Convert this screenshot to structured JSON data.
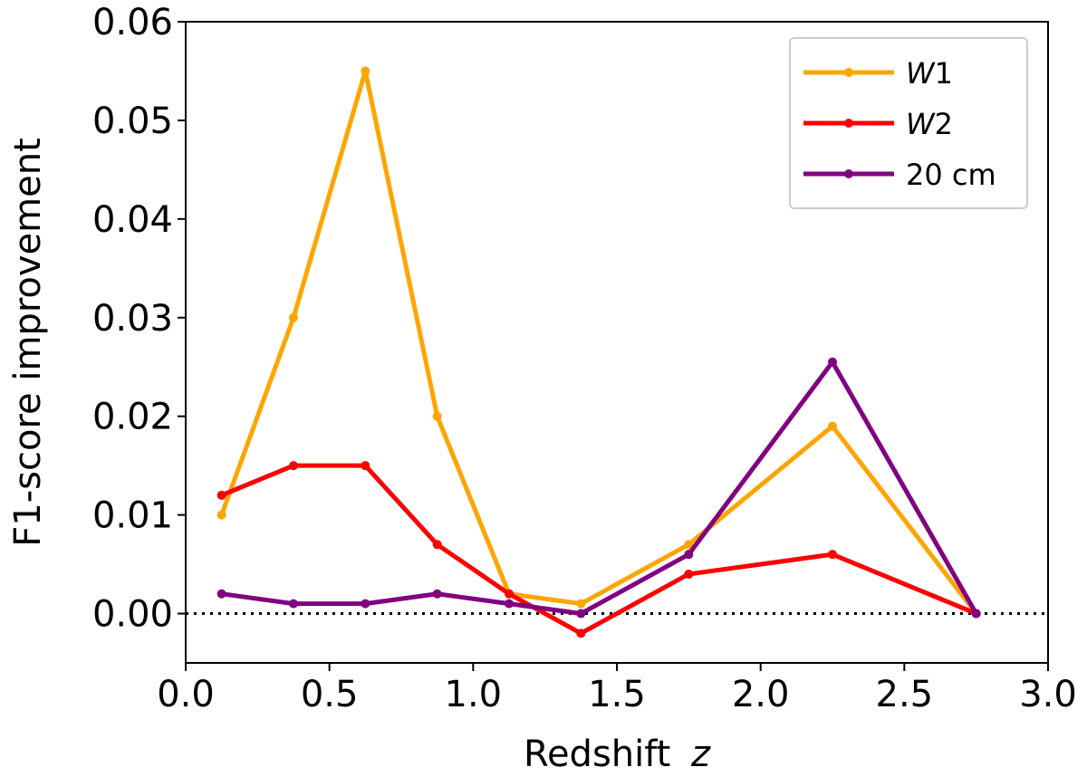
{
  "chart_data": {
    "type": "line",
    "title": "",
    "xlabel": "Redshift",
    "xlabel_var": "z",
    "ylabel": "F1-score improvement",
    "xlim": [
      0.0,
      3.0
    ],
    "ylim": [
      -0.005,
      0.06
    ],
    "xticks": [
      0.0,
      0.5,
      1.0,
      1.5,
      2.0,
      2.5,
      3.0
    ],
    "xtick_labels": [
      "0.0",
      "0.5",
      "1.0",
      "1.5",
      "2.0",
      "2.5",
      "3.0"
    ],
    "yticks": [
      0.0,
      0.01,
      0.02,
      0.03,
      0.04,
      0.05,
      0.06
    ],
    "ytick_labels": [
      "0.00",
      "0.01",
      "0.02",
      "0.03",
      "0.04",
      "0.05",
      "0.06"
    ],
    "reference_line": {
      "y": 0.0,
      "style": "dotted"
    },
    "legend_position": "top-right",
    "grid": false,
    "series": [
      {
        "name": "W1",
        "legend_main": "W",
        "legend_sub": "1",
        "legend_italic": true,
        "color": "#FFA500",
        "x": [
          0.125,
          0.375,
          0.625,
          0.875,
          1.125,
          1.375,
          1.75,
          2.25,
          2.75
        ],
        "values": [
          0.01,
          0.03,
          0.055,
          0.02,
          0.002,
          0.001,
          0.007,
          0.019,
          0.0
        ]
      },
      {
        "name": "W2",
        "legend_main": "W",
        "legend_sub": "2",
        "legend_italic": true,
        "color": "#FF0000",
        "x": [
          0.125,
          0.375,
          0.625,
          0.875,
          1.125,
          1.375,
          1.75,
          2.25,
          2.75
        ],
        "values": [
          0.012,
          0.015,
          0.015,
          0.007,
          0.002,
          -0.002,
          0.004,
          0.006,
          0.0
        ]
      },
      {
        "name": "20 cm",
        "legend_main": "20 cm",
        "legend_sub": "",
        "legend_italic": false,
        "color": "#800080",
        "x": [
          0.125,
          0.375,
          0.625,
          0.875,
          1.125,
          1.375,
          1.75,
          2.25,
          2.75
        ],
        "values": [
          0.002,
          0.001,
          0.001,
          0.002,
          0.001,
          0.0,
          0.006,
          0.0255,
          0.0
        ]
      }
    ]
  }
}
